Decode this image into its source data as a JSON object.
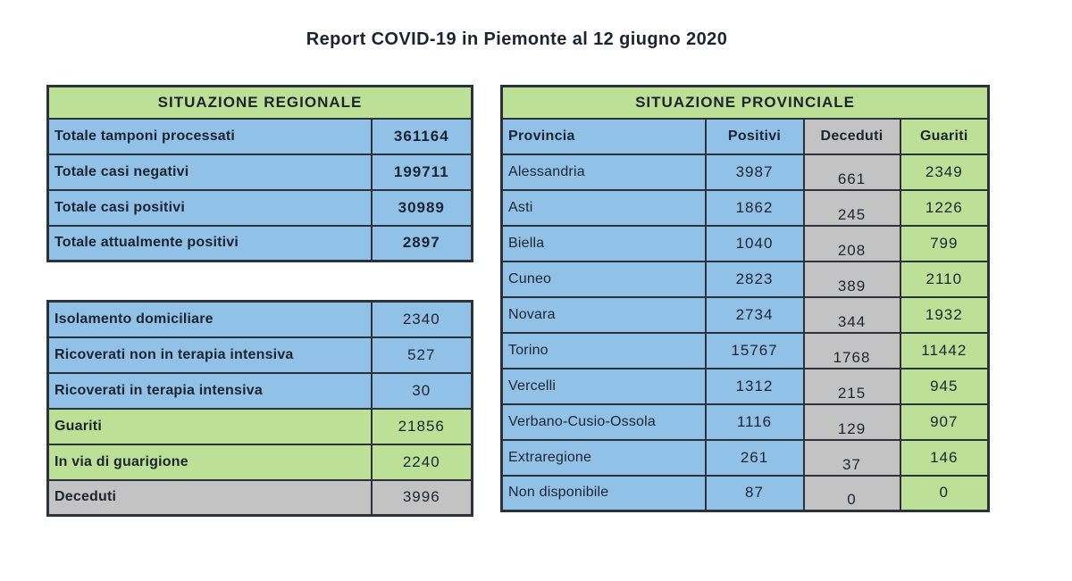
{
  "title": "Report COVID-19 in Piemonte al 12 giugno 2020",
  "colors": {
    "green": "#bde097",
    "blue": "#92c1e8",
    "gray": "#c3c3c3",
    "border": "#2b323b",
    "text": "#1c2430",
    "background": "#ffffff"
  },
  "regional": {
    "header": "SITUAZIONE REGIONALE",
    "summary_rows": [
      {
        "label": "Totale tamponi processati",
        "value": "361164",
        "color": "blue"
      },
      {
        "label": "Totale casi negativi",
        "value": "199711",
        "color": "blue"
      },
      {
        "label": "Totale casi positivi",
        "value": "30989",
        "color": "blue"
      },
      {
        "label": "Totale attualmente positivi",
        "value": "2897",
        "color": "blue"
      }
    ],
    "detail_rows": [
      {
        "label": "Isolamento domiciliare",
        "value": "2340",
        "color": "blue"
      },
      {
        "label": "Ricoverati non in terapia intensiva",
        "value": "527",
        "color": "blue"
      },
      {
        "label": "Ricoverati in terapia intensiva",
        "value": "30",
        "color": "blue"
      },
      {
        "label": "Guariti",
        "value": "21856",
        "color": "green"
      },
      {
        "label": "In via di guarigione",
        "value": "2240",
        "color": "green"
      },
      {
        "label": "Deceduti",
        "value": "3996",
        "color": "gray"
      }
    ]
  },
  "provincial": {
    "header": "SITUAZIONE PROVINCIALE",
    "columns": [
      "Provincia",
      "Positivi",
      "Deceduti",
      "Guariti"
    ],
    "rows": [
      {
        "provincia": "Alessandria",
        "positivi": "3987",
        "deceduti": "661",
        "guariti": "2349"
      },
      {
        "provincia": "Asti",
        "positivi": "1862",
        "deceduti": "245",
        "guariti": "1226"
      },
      {
        "provincia": "Biella",
        "positivi": "1040",
        "deceduti": "208",
        "guariti": "799"
      },
      {
        "provincia": "Cuneo",
        "positivi": "2823",
        "deceduti": "389",
        "guariti": "2110"
      },
      {
        "provincia": "Novara",
        "positivi": "2734",
        "deceduti": "344",
        "guariti": "1932"
      },
      {
        "provincia": "Torino",
        "positivi": "15767",
        "deceduti": "1768",
        "guariti": "11442"
      },
      {
        "provincia": "Vercelli",
        "positivi": "1312",
        "deceduti": "215",
        "guariti": "945"
      },
      {
        "provincia": "Verbano-Cusio-Ossola",
        "positivi": "1116",
        "deceduti": "129",
        "guariti": "907"
      },
      {
        "provincia": "Extraregione",
        "positivi": "261",
        "deceduti": "37",
        "guariti": "146"
      },
      {
        "provincia": "Non disponibile",
        "positivi": "87",
        "deceduti": "0",
        "guariti": "0"
      }
    ]
  }
}
